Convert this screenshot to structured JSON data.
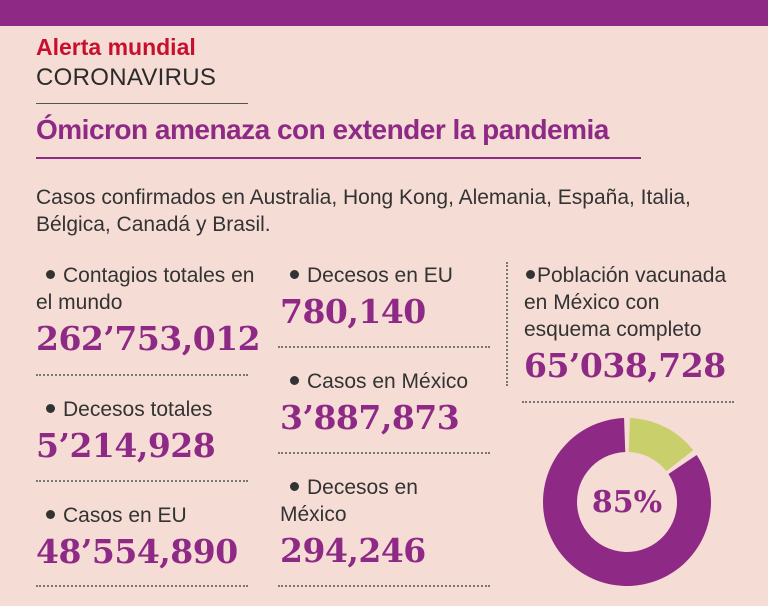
{
  "header": {
    "kicker": "Alerta mundial",
    "section": "CORONAVIRUS",
    "headline": "Ómicron amenaza con extender la pandemia",
    "intro": "Casos confirmados en Australia, Hong Kong, Alemania, España, Italia, Bélgica, Canadá y Brasil."
  },
  "stats": {
    "contagios_mundo": {
      "label": "Contagios totales en el mundo",
      "value": "262’753,012"
    },
    "decesos_totales": {
      "label": "Decesos totales",
      "value": "5’214,928"
    },
    "casos_eu": {
      "label": "Casos en EU",
      "value": "48’554,890"
    },
    "decesos_eu": {
      "label": "Decesos en EU",
      "value": "780,140"
    },
    "casos_mexico": {
      "label": "Casos en México",
      "value": "3’887,873"
    },
    "decesos_mexico": {
      "label": "Decesos en México",
      "value": "294,246"
    },
    "vacunados_mexico": {
      "label": "Población vacunada en México con esquema completo",
      "value": "65’038,728"
    }
  },
  "donut": {
    "label": "85%",
    "percent": 85,
    "colors": {
      "main": "#8e2a86",
      "rest": "#c9cf6a",
      "separator": "#f5dcd5"
    }
  }
}
